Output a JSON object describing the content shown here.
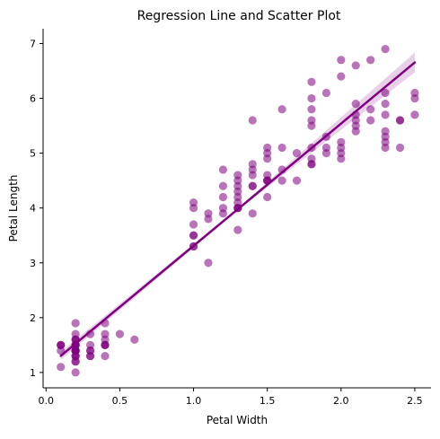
{
  "chart_data": {
    "type": "scatter",
    "title": "Regression Line and Scatter Plot",
    "xlabel": "Petal Width",
    "ylabel": "Petal Length",
    "xlim": [
      -0.02,
      2.61
    ],
    "ylim": [
      0.72,
      7.27
    ],
    "xticks": [
      0.0,
      0.5,
      1.0,
      1.5,
      2.0,
      2.5
    ],
    "xtick_labels": [
      "0.0",
      "0.5",
      "1.0",
      "1.5",
      "2.0",
      "2.5"
    ],
    "yticks": [
      1,
      2,
      3,
      4,
      5,
      6,
      7
    ],
    "ytick_labels": [
      "1",
      "2",
      "3",
      "4",
      "5",
      "6",
      "7"
    ],
    "point_color": "#800080",
    "point_alpha": 0.55,
    "line_color": "#800080",
    "band_color": "#800080",
    "band_alpha": 0.18,
    "regression": {
      "slope": 2.23,
      "intercept": 1.08
    },
    "band_width": [
      0.08,
      0.02,
      0.18
    ],
    "points": [
      [
        0.1,
        1.5
      ],
      [
        0.1,
        1.5
      ],
      [
        0.1,
        1.4
      ],
      [
        0.1,
        1.1
      ],
      [
        0.1,
        1.5
      ],
      [
        0.2,
        1.4
      ],
      [
        0.2,
        1.4
      ],
      [
        0.2,
        1.3
      ],
      [
        0.2,
        1.5
      ],
      [
        0.2,
        1.4
      ],
      [
        0.2,
        1.5
      ],
      [
        0.2,
        1.6
      ],
      [
        0.2,
        1.4
      ],
      [
        0.2,
        1.2
      ],
      [
        0.2,
        1.3
      ],
      [
        0.2,
        1.5
      ],
      [
        0.2,
        1.3
      ],
      [
        0.2,
        1.5
      ],
      [
        0.2,
        1.2
      ],
      [
        0.2,
        1.0
      ],
      [
        0.2,
        1.7
      ],
      [
        0.2,
        1.9
      ],
      [
        0.2,
        1.6
      ],
      [
        0.2,
        1.4
      ],
      [
        0.2,
        1.6
      ],
      [
        0.2,
        1.5
      ],
      [
        0.2,
        1.4
      ],
      [
        0.3,
        1.4
      ],
      [
        0.3,
        1.7
      ],
      [
        0.3,
        1.5
      ],
      [
        0.3,
        1.3
      ],
      [
        0.3,
        1.4
      ],
      [
        0.3,
        1.3
      ],
      [
        0.4,
        1.5
      ],
      [
        0.4,
        1.7
      ],
      [
        0.4,
        1.5
      ],
      [
        0.4,
        1.9
      ],
      [
        0.4,
        1.6
      ],
      [
        0.4,
        1.5
      ],
      [
        0.4,
        1.3
      ],
      [
        0.5,
        1.7
      ],
      [
        0.6,
        1.6
      ],
      [
        1.0,
        3.5
      ],
      [
        1.0,
        3.3
      ],
      [
        1.0,
        3.5
      ],
      [
        1.0,
        4.0
      ],
      [
        1.0,
        3.3
      ],
      [
        1.0,
        3.7
      ],
      [
        1.0,
        4.1
      ],
      [
        1.1,
        3.0
      ],
      [
        1.1,
        3.8
      ],
      [
        1.1,
        3.9
      ],
      [
        1.2,
        4.0
      ],
      [
        1.2,
        3.9
      ],
      [
        1.2,
        4.4
      ],
      [
        1.2,
        4.7
      ],
      [
        1.2,
        4.2
      ],
      [
        1.3,
        4.0
      ],
      [
        1.3,
        4.1
      ],
      [
        1.3,
        4.2
      ],
      [
        1.3,
        4.3
      ],
      [
        1.3,
        4.4
      ],
      [
        1.3,
        4.5
      ],
      [
        1.3,
        4.6
      ],
      [
        1.3,
        3.6
      ],
      [
        1.3,
        4.0
      ],
      [
        1.3,
        4.0
      ],
      [
        1.4,
        4.4
      ],
      [
        1.4,
        4.7
      ],
      [
        1.4,
        4.6
      ],
      [
        1.4,
        3.9
      ],
      [
        1.4,
        4.8
      ],
      [
        1.4,
        5.6
      ],
      [
        1.4,
        4.4
      ],
      [
        1.5,
        4.5
      ],
      [
        1.5,
        4.9
      ],
      [
        1.5,
        4.2
      ],
      [
        1.5,
        4.6
      ],
      [
        1.5,
        5.0
      ],
      [
        1.5,
        5.1
      ],
      [
        1.5,
        4.5
      ],
      [
        1.5,
        4.5
      ],
      [
        1.6,
        4.5
      ],
      [
        1.6,
        4.7
      ],
      [
        1.6,
        5.1
      ],
      [
        1.6,
        5.8
      ],
      [
        1.7,
        4.5
      ],
      [
        1.7,
        5.0
      ],
      [
        1.8,
        4.8
      ],
      [
        1.8,
        4.9
      ],
      [
        1.8,
        5.1
      ],
      [
        1.8,
        5.5
      ],
      [
        1.8,
        5.6
      ],
      [
        1.8,
        6.0
      ],
      [
        1.8,
        6.3
      ],
      [
        1.8,
        4.8
      ],
      [
        1.8,
        5.8
      ],
      [
        1.9,
        5.0
      ],
      [
        1.9,
        5.3
      ],
      [
        1.9,
        5.1
      ],
      [
        1.9,
        6.1
      ],
      [
        2.0,
        4.9
      ],
      [
        2.0,
        5.0
      ],
      [
        2.0,
        5.1
      ],
      [
        2.0,
        5.2
      ],
      [
        2.0,
        6.4
      ],
      [
        2.0,
        6.7
      ],
      [
        2.1,
        5.4
      ],
      [
        2.1,
        5.5
      ],
      [
        2.1,
        5.6
      ],
      [
        2.1,
        5.7
      ],
      [
        2.1,
        5.9
      ],
      [
        2.1,
        6.6
      ],
      [
        2.2,
        5.6
      ],
      [
        2.2,
        5.8
      ],
      [
        2.2,
        6.7
      ],
      [
        2.3,
        5.1
      ],
      [
        2.3,
        5.2
      ],
      [
        2.3,
        5.3
      ],
      [
        2.3,
        5.4
      ],
      [
        2.3,
        5.7
      ],
      [
        2.3,
        5.9
      ],
      [
        2.3,
        6.1
      ],
      [
        2.3,
        6.9
      ],
      [
        2.4,
        5.1
      ],
      [
        2.4,
        5.6
      ],
      [
        2.4,
        5.6
      ],
      [
        2.5,
        5.7
      ],
      [
        2.5,
        6.0
      ],
      [
        2.5,
        6.1
      ]
    ]
  }
}
